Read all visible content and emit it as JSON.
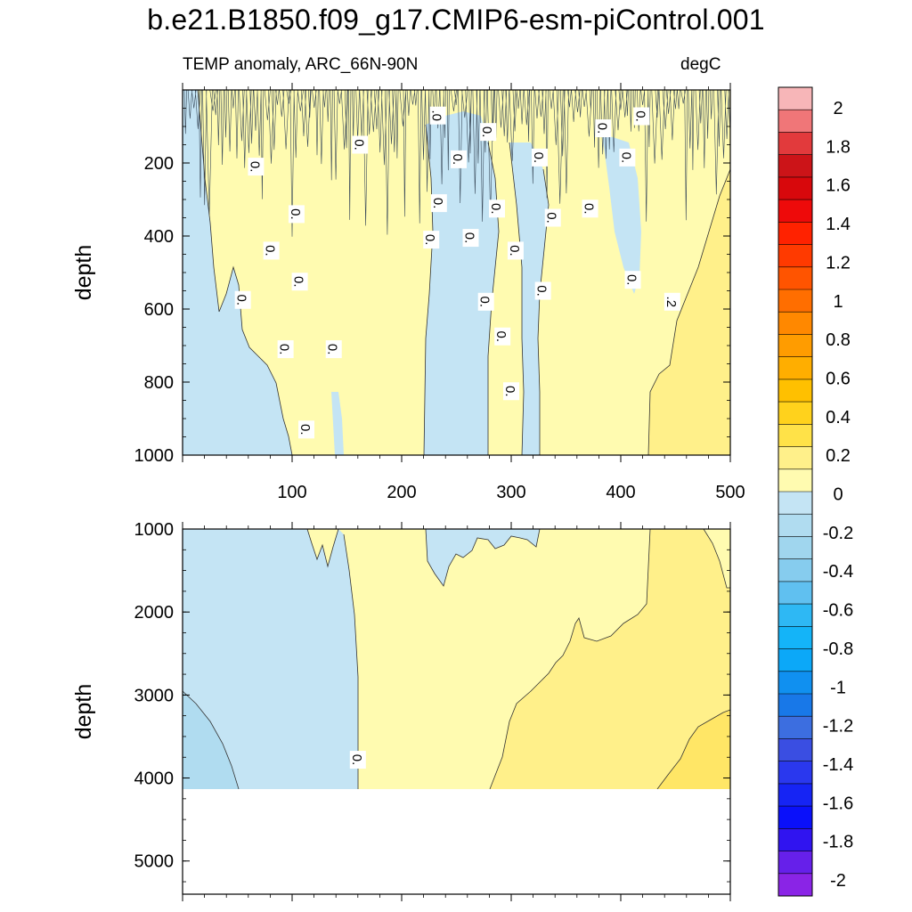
{
  "figure": {
    "title": "b.e21.B1850.f09_g17.CMIP6-esm-piControl.001",
    "subtitle_left": "TEMP anomaly, ARC_66N-90N",
    "subtitle_right": "degC"
  },
  "chart_data": {
    "type": "heatmap",
    "variable": "TEMP anomaly",
    "region": "ARC_66N-90N",
    "units": "degC",
    "x_ticks": [
      100,
      200,
      300,
      400,
      500
    ],
    "xlim": [
      0,
      500
    ],
    "panels": [
      {
        "name": "upper",
        "ylabel": "depth",
        "ylim": [
          0,
          1000
        ],
        "y_ticks": [
          200,
          400,
          600,
          800,
          1000
        ],
        "y_reversed": true,
        "show_x_tick_labels": true,
        "contour_labels": [
          {
            "text": ".0",
            "x": 233,
            "y": 70
          },
          {
            "text": "0.",
            "x": 279,
            "y": 115
          },
          {
            "text": "0.",
            "x": 384,
            "y": 105
          },
          {
            "text": "0.",
            "x": 419,
            "y": 72
          },
          {
            "text": "0.",
            "x": 162,
            "y": 150
          },
          {
            "text": "0.",
            "x": 67,
            "y": 210
          },
          {
            "text": "0.",
            "x": 252,
            "y": 190
          },
          {
            "text": "0.",
            "x": 326,
            "y": 185
          },
          {
            "text": "0.",
            "x": 406,
            "y": 185
          },
          {
            "text": "0.",
            "x": 104,
            "y": 340
          },
          {
            "text": "0.",
            "x": 234,
            "y": 310
          },
          {
            "text": "0.",
            "x": 287,
            "y": 325
          },
          {
            "text": "0.",
            "x": 338,
            "y": 350
          },
          {
            "text": "0.",
            "x": 372,
            "y": 325
          },
          {
            "text": "0.",
            "x": 81,
            "y": 440
          },
          {
            "text": "0.",
            "x": 227,
            "y": 410
          },
          {
            "text": "0.",
            "x": 263,
            "y": 405
          },
          {
            "text": "0.",
            "x": 304,
            "y": 440
          },
          {
            "text": "0.",
            "x": 107,
            "y": 525
          },
          {
            "text": "0.",
            "x": 411,
            "y": 520
          },
          {
            "text": "0.",
            "x": 55,
            "y": 575
          },
          {
            "text": "0.",
            "x": 277,
            "y": 580
          },
          {
            "text": "0.",
            "x": 329,
            "y": 550
          },
          {
            "text": ".2",
            "x": 447,
            "y": 580
          },
          {
            "text": "0.",
            "x": 94,
            "y": 710
          },
          {
            "text": "0.",
            "x": 138,
            "y": 710
          },
          {
            "text": "0.",
            "x": 292,
            "y": 675
          },
          {
            "text": "0.",
            "x": 300,
            "y": 825
          },
          {
            "text": "0.",
            "x": 113,
            "y": 930
          }
        ]
      },
      {
        "name": "lower",
        "ylabel": "depth",
        "ylim": [
          1000,
          5400
        ],
        "y_ticks": [
          1000,
          2000,
          3000,
          4000,
          5000
        ],
        "y_reversed": true,
        "data_bottom": 4130,
        "show_x_tick_labels": false,
        "contour_labels": [
          {
            "text": "0.",
            "x": 160,
            "y": 3780
          }
        ]
      }
    ],
    "colorbar": {
      "levels": [
        -2,
        -1.8,
        -1.6,
        -1.4,
        -1.2,
        -1,
        -0.8,
        -0.6,
        -0.4,
        -0.2,
        0,
        0.2,
        0.4,
        0.6,
        0.8,
        1,
        1.2,
        1.4,
        1.6,
        1.8,
        2
      ],
      "labels": [
        "2",
        "1.8",
        "1.6",
        "1.4",
        "1.2",
        "1",
        "0.8",
        "0.6",
        "0.4",
        "0.2",
        "0",
        "-0.2",
        "-0.4",
        "-0.6",
        "-0.8",
        "-1",
        "-1.2",
        "-1.4",
        "-1.6",
        "-1.8",
        "-2"
      ],
      "colors_top_to_bottom": [
        "#f7b6b8",
        "#f07678",
        "#e23a3c",
        "#cc1418",
        "#d8080c",
        "#ee0a0a",
        "#ff2200",
        "#ff3a00",
        "#ff5400",
        "#ff6e00",
        "#ff8800",
        "#ff9c00",
        "#ffae00",
        "#ffc000",
        "#ffd21c",
        "#ffe248",
        "#fff08a",
        "#fffbb0",
        "#c4e4f4",
        "#b0dcf0",
        "#a0d6ee",
        "#86ccee",
        "#60c0f0",
        "#2eb8f4",
        "#14b4f8",
        "#0ca8f8",
        "#1090f0",
        "#1878e8",
        "#3c6ee0",
        "#3a4ee2",
        "#2a38ee",
        "#1624f4",
        "#0a10fa",
        "#3014f0",
        "#6620ea",
        "#8a24e6"
      ]
    }
  }
}
